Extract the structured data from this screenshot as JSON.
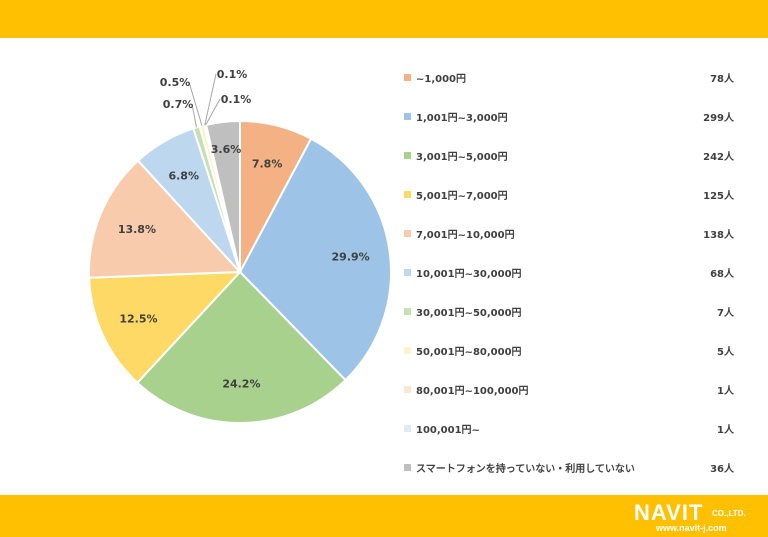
{
  "chart_data": {
    "type": "pie",
    "title": "",
    "legend_position": "right",
    "categories": [
      "~1,000円",
      "1,001円~3,000円",
      "3,001円~5,000円",
      "5,001円~7,000円",
      "7,001円~10,000円",
      "10,001円~30,000円",
      "30,001円~50,000円",
      "50,001円~80,000円",
      "80,001円~100,000円",
      "100,001円~",
      "スマートフォンを持っていない・利用していない"
    ],
    "counts": [
      "78人",
      "299人",
      "242人",
      "125人",
      "138人",
      "68人",
      "7人",
      "5人",
      "1人",
      "1人",
      "36人"
    ],
    "values": [
      7.8,
      29.9,
      24.2,
      12.5,
      13.8,
      6.8,
      0.7,
      0.5,
      0.1,
      0.1,
      3.6
    ],
    "value_labels": [
      "7.8%",
      "29.9%",
      "24.2%",
      "12.5%",
      "13.8%",
      "6.8%",
      "0.7%",
      "0.5%",
      "0.1%",
      "0.1%",
      "3.6%"
    ],
    "colors": [
      "#f4b183",
      "#9dc3e6",
      "#a9d18e",
      "#ffd966",
      "#f8cbad",
      "#bdd7ee",
      "#c5e0b4",
      "#fff2cc",
      "#fbe5d6",
      "#deebf7",
      "#bfbfbf"
    ]
  },
  "brand": {
    "logo_word": "NAVIT",
    "logo_suffix": "CO.,LTD.",
    "url": "www.navit-j.com"
  }
}
